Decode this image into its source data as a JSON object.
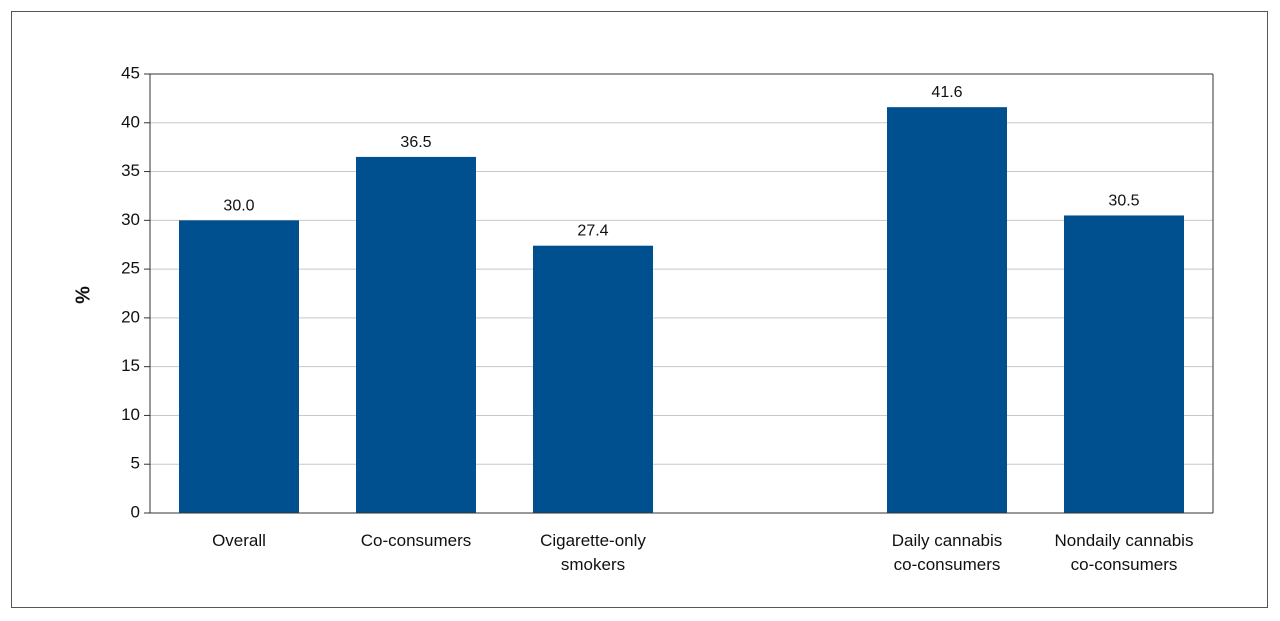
{
  "chart_data": {
    "type": "bar",
    "title": "",
    "xlabel": "",
    "ylabel": "%",
    "ylim": [
      0,
      45
    ],
    "yticks": [
      0,
      5,
      10,
      15,
      20,
      25,
      30,
      35,
      40,
      45
    ],
    "grid": true,
    "legend": "none",
    "bar_color": "#00508f",
    "categories": [
      [
        "Overall"
      ],
      [
        "Co-consumers"
      ],
      [
        "Cigarette-only",
        "smokers"
      ],
      [
        "Daily cannabis",
        "co-consumers"
      ],
      [
        "Nondaily cannabis",
        "co-consumers"
      ]
    ],
    "values": [
      30.0,
      36.5,
      27.4,
      41.6,
      30.5
    ],
    "value_labels": [
      "30.0",
      "36.5",
      "27.4",
      "41.6",
      "30.5"
    ]
  }
}
